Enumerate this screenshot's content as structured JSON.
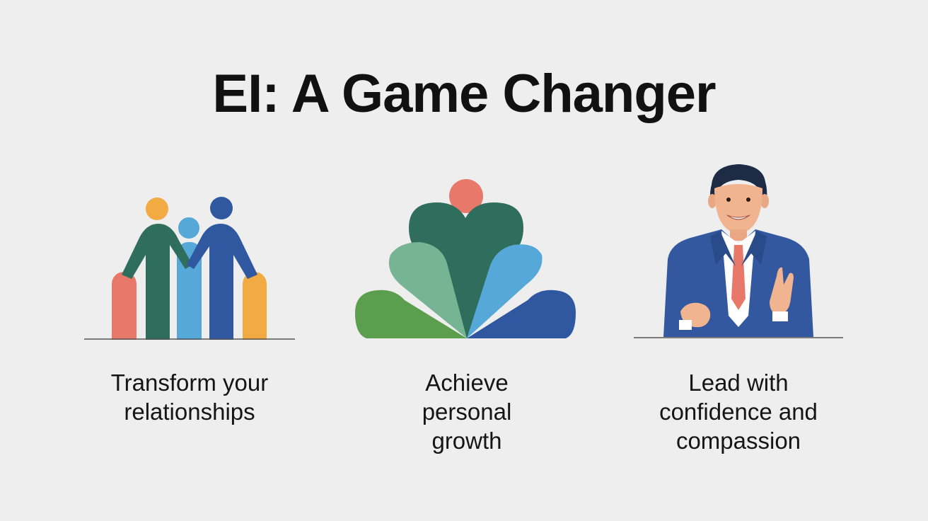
{
  "title": "EI: A Game Changer",
  "columns": [
    {
      "lines": [
        "Transform your",
        "relationships"
      ],
      "icon": "people-group-icon"
    },
    {
      "lines": [
        "Achieve",
        "personal",
        "growth"
      ],
      "icon": "growth-bloom-icon"
    },
    {
      "lines": [
        "Lead with",
        "confidence and",
        "compassion"
      ],
      "icon": "leader-person-icon"
    }
  ],
  "colors": {
    "background": "#eeeeee",
    "coral": "#e8796a",
    "dark_green": "#2f6e5c",
    "light_blue": "#56a8d8",
    "navy": "#2f58a0",
    "orange": "#f2aa43",
    "sage": "#77b494",
    "green": "#5a9e4e",
    "suit_blue": "#3458a0"
  }
}
